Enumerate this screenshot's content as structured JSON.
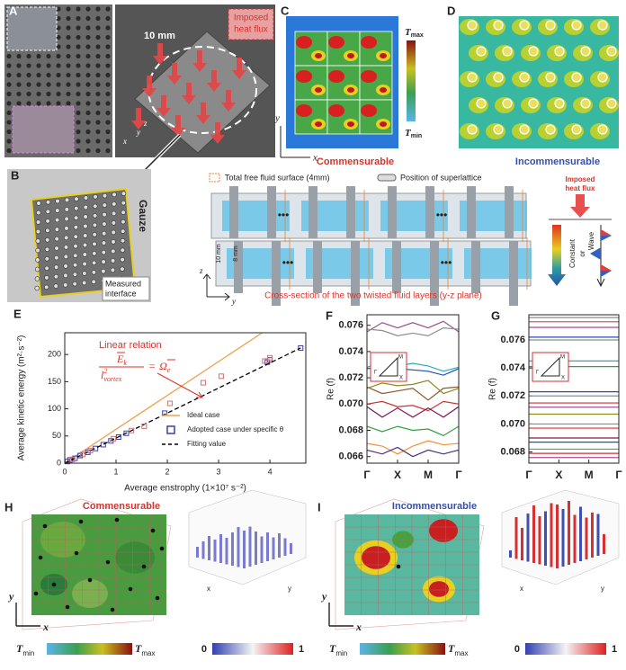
{
  "figure": {
    "A": {
      "label": "A",
      "scale": "10 mm",
      "heat_flux": [
        "Imposed",
        "heat flux"
      ],
      "x": "x",
      "y": "y",
      "z": "z"
    },
    "B": {
      "label": "B",
      "gauze": "Gauze",
      "interface": [
        "Measured",
        "interface"
      ],
      "legend_surface": "Total free fluid surface (4mm)",
      "legend_superlattice": "Position of superlattice",
      "dots": "•••",
      "height_outer": "10 mm",
      "height_inner": "8 mm",
      "z": "z",
      "y": "y",
      "caption": "Cross-section of the two twisted fluid layers (y-z plane)",
      "heat_flux": [
        "Imposed",
        "heat flux"
      ],
      "constant": "Constant",
      "or": "or",
      "wave": "Wave"
    },
    "C": {
      "label": "C",
      "t": "T",
      "max": "max",
      "min": "min",
      "caption": "Commensurable",
      "x": "x",
      "y": "y"
    },
    "D": {
      "label": "D",
      "caption": "Incommensurable"
    },
    "H": {
      "label": "H",
      "caption": "Commensurable",
      "x": "x",
      "y": "y",
      "t": "T",
      "min": "min",
      "max": "max",
      "low": 0,
      "high": 1
    },
    "I": {
      "label": "I",
      "caption": "Incommensurable",
      "x": "x",
      "y": "y",
      "t": "T",
      "min": "min",
      "max": "max",
      "low": 0,
      "high": 1
    }
  },
  "chart_data": [
    {
      "type": "scatter",
      "label": "E",
      "ylabel": "Average kinetic energy (m²·s⁻²)",
      "xlabel": "Average enstrophy (1×10⁷ s⁻²)",
      "annotation": "Linear relation",
      "formula": {
        "num": "E",
        "num_sub": "k",
        "den": "l",
        "den_sup": "2",
        "den_sub": "vortex",
        "eq": "=",
        "rhs": "Ω",
        "rhs_sub": "e"
      },
      "xlim": [
        0,
        4.7
      ],
      "ylim": [
        0,
        240
      ],
      "xticks": [
        0,
        1,
        2,
        3,
        4
      ],
      "yticks": [
        0,
        50,
        100,
        150,
        200
      ],
      "legend": "lower right",
      "series": [
        {
          "name": "Ideal case",
          "color": "#f0a04b",
          "style": "solid",
          "x": [
            0,
            3.85
          ],
          "values": [
            0,
            240
          ]
        },
        {
          "name": "Adopted case under specific θ",
          "color": "#3d3da0",
          "style": "marker",
          "x": [
            0.05,
            0.1,
            0.2,
            0.3,
            0.45,
            0.6,
            0.75,
            0.9,
            1.05,
            1.2,
            1.95,
            3.95,
            4.0,
            4.6
          ],
          "values": [
            3,
            6,
            9,
            14,
            20,
            27,
            34,
            41,
            48,
            55,
            92,
            186,
            190,
            212
          ]
        },
        {
          "name": "Fitting value",
          "color": "#000000",
          "style": "dashed",
          "x": [
            0,
            4.6
          ],
          "values": [
            0,
            212
          ]
        },
        {
          "color": "#d07070",
          "style": "marker",
          "x": [
            0.15,
            0.35,
            0.5,
            0.95,
            1.3,
            1.55,
            2.05,
            2.7,
            3.05,
            3.9,
            4.0
          ],
          "values": [
            7,
            16,
            23,
            45,
            60,
            68,
            110,
            148,
            160,
            188,
            194
          ]
        }
      ]
    },
    {
      "type": "line",
      "label": "F",
      "ylabel": "Re (f)",
      "inset_labels": [
        "M",
        "Γ",
        "X"
      ],
      "x": [
        0,
        0.5,
        1,
        1.5,
        2,
        2.5,
        3
      ],
      "xlim": [
        0,
        3
      ],
      "ylim": [
        0.0655,
        0.0768
      ],
      "xticks": [
        {
          "value": 0,
          "label": "Γ"
        },
        {
          "value": 1,
          "label": "X"
        },
        {
          "value": 2,
          "label": "M"
        },
        {
          "value": 3,
          "label": "Γ"
        }
      ],
      "yticks": [
        0.066,
        0.068,
        {
          "value": 0.07,
          "label": "0.070"
        },
        0.072,
        0.074,
        0.076
      ],
      "series": [
        {
          "color": "#9b4f96",
          "values": [
            0.0755,
            0.0762,
            0.0758,
            0.0762,
            0.0758,
            0.0763,
            0.0755
          ]
        },
        {
          "color": "#8c8c8c",
          "values": [
            0.0757,
            0.0756,
            0.0752,
            0.0754,
            0.0752,
            0.0758,
            0.0757
          ]
        },
        {
          "color": "#2aa8b8",
          "values": [
            0.0728,
            0.0732,
            0.0729,
            0.0731,
            0.0729,
            0.0725,
            0.0728
          ]
        },
        {
          "color": "#2050b0",
          "values": [
            0.0727,
            0.0728,
            0.0727,
            0.0726,
            0.0725,
            0.0722,
            0.0727
          ]
        },
        {
          "color": "#8a5a30",
          "values": [
            0.0713,
            0.0708,
            0.071,
            0.0712,
            0.0703,
            0.0712,
            0.0713
          ]
        },
        {
          "color": "#8a8a20",
          "values": [
            0.0712,
            0.0716,
            0.0714,
            0.0715,
            0.0718,
            0.0708,
            0.0712
          ]
        },
        {
          "color": "#d03030",
          "values": [
            0.07,
            0.0702,
            0.0698,
            0.0699,
            0.0695,
            0.0702,
            0.07
          ]
        },
        {
          "color": "#7a1850",
          "values": [
            0.0698,
            0.069,
            0.0697,
            0.069,
            0.0697,
            0.069,
            0.0698
          ]
        },
        {
          "color": "#30a040",
          "values": [
            0.0683,
            0.0679,
            0.0683,
            0.068,
            0.0681,
            0.0676,
            0.0683
          ]
        },
        {
          "color": "#f09030",
          "values": [
            0.067,
            0.0668,
            0.0662,
            0.0668,
            0.0672,
            0.0669,
            0.067
          ]
        },
        {
          "color": "#503070",
          "values": [
            0.0665,
            0.0662,
            0.0667,
            0.066,
            0.0665,
            0.0662,
            0.0665
          ]
        }
      ]
    },
    {
      "type": "line",
      "label": "G",
      "ylabel": "Re (f)",
      "inset_labels": [
        "M",
        "Γ",
        "X"
      ],
      "x": [
        0,
        3
      ],
      "xlim": [
        0,
        3
      ],
      "ylim": [
        0.0672,
        0.0778
      ],
      "xticks": [
        {
          "value": 0,
          "label": "Γ"
        },
        {
          "value": 1,
          "label": "X"
        },
        {
          "value": 2,
          "label": "M"
        },
        {
          "value": 3,
          "label": "Γ"
        }
      ],
      "yticks": [
        0.068,
        {
          "value": 0.07,
          "label": "0.070"
        },
        0.072,
        0.074,
        0.076
      ],
      "series": [
        {
          "color": "#8c8c8c",
          "values": [
            0.0776,
            0.0776
          ]
        },
        {
          "color": "#c06060",
          "values": [
            0.0773,
            0.0773
          ]
        },
        {
          "color": "#9b4f96",
          "values": [
            0.0769,
            0.0769
          ]
        },
        {
          "color": "#2050b0",
          "values": [
            0.0762,
            0.0762
          ]
        },
        {
          "color": "#8c8c8c",
          "values": [
            0.076,
            0.076
          ]
        },
        {
          "color": "#2aa8b8",
          "values": [
            0.0745,
            0.0745
          ]
        },
        {
          "color": "#30a040",
          "values": [
            0.0741,
            0.0741
          ]
        },
        {
          "color": "#2050b0",
          "values": [
            0.0723,
            0.0723
          ]
        },
        {
          "color": "#8c8c8c",
          "values": [
            0.072,
            0.072
          ]
        },
        {
          "color": "#d03030",
          "values": [
            0.0715,
            0.0715
          ]
        },
        {
          "color": "#9b4f96",
          "values": [
            0.0712,
            0.0712
          ]
        },
        {
          "color": "#8a8a20",
          "values": [
            0.0707,
            0.0707
          ]
        },
        {
          "color": "#8c8c8c",
          "values": [
            0.07,
            0.07
          ]
        },
        {
          "color": "#d03030",
          "values": [
            0.0697,
            0.0697
          ]
        },
        {
          "color": "#7a1850",
          "values": [
            0.069,
            0.069
          ]
        },
        {
          "color": "#2050b0",
          "values": [
            0.0687,
            0.0687
          ]
        },
        {
          "color": "#2aa8b8",
          "values": [
            0.0682,
            0.0682
          ]
        },
        {
          "color": "#d03030",
          "values": [
            0.0679,
            0.0679
          ]
        },
        {
          "color": "#9b4f96",
          "values": [
            0.0676,
            0.0676
          ]
        }
      ]
    }
  ]
}
